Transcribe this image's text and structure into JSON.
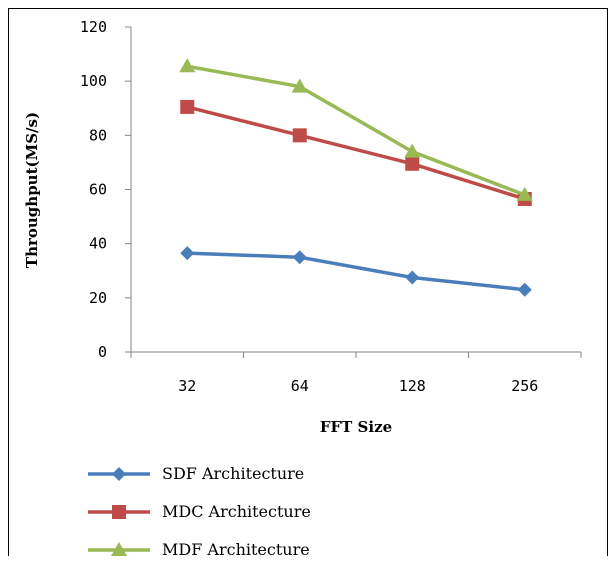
{
  "chart_data": {
    "type": "line",
    "categories": [
      "32",
      "64",
      "128",
      "256"
    ],
    "series": [
      {
        "name": "SDF Architecture",
        "values": [
          36.5,
          35,
          27.5,
          23
        ],
        "color": "#4a7ebb",
        "marker": "diamond"
      },
      {
        "name": "MDC Architecture",
        "values": [
          90.5,
          80,
          69.5,
          56.5
        ],
        "color": "#be4b48",
        "marker": "square"
      },
      {
        "name": "MDF Architecture",
        "values": [
          105.5,
          98,
          74,
          58
        ],
        "color": "#98b954",
        "marker": "triangle"
      }
    ],
    "xlabel": "FFT Size",
    "ylabel": "Throughput(MS/s)",
    "ylim": [
      0,
      120
    ],
    "yticks": [
      "0",
      "20",
      "40",
      "60",
      "80",
      "100",
      "120"
    ],
    "grid": false,
    "legend_position": "bottom"
  }
}
